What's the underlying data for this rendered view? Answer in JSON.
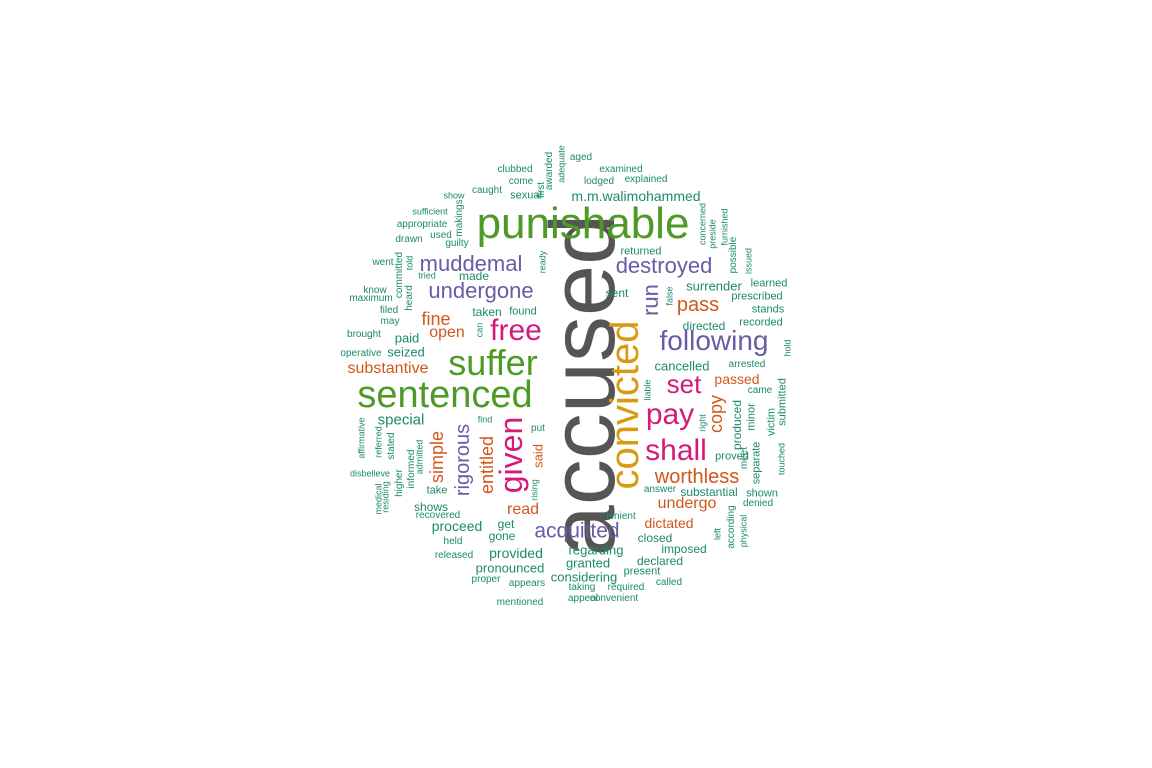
{
  "colors": {
    "gray": "#555555",
    "green": "#4e9a26",
    "orange": "#d89a10",
    "magenta": "#d6197a",
    "purple": "#6b5aa6",
    "rust": "#d2571a",
    "teal": "#1b8a6b"
  },
  "words": [
    {
      "text": "accused",
      "color": "gray"
    },
    {
      "text": "punishable",
      "color": "green"
    },
    {
      "text": "sentenced",
      "color": "green"
    },
    {
      "text": "suffer",
      "color": "green"
    },
    {
      "text": "convicted",
      "color": "orange"
    },
    {
      "text": "given",
      "color": "magenta"
    },
    {
      "text": "free",
      "color": "magenta"
    },
    {
      "text": "pay",
      "color": "magenta"
    },
    {
      "text": "shall",
      "color": "magenta"
    },
    {
      "text": "set",
      "color": "magenta"
    },
    {
      "text": "following",
      "color": "purple"
    },
    {
      "text": "destroyed",
      "color": "purple"
    },
    {
      "text": "undergone",
      "color": "purple"
    },
    {
      "text": "muddemal",
      "color": "purple"
    },
    {
      "text": "rigorous",
      "color": "purple"
    },
    {
      "text": "acquitted",
      "color": "purple"
    },
    {
      "text": "run",
      "color": "purple"
    },
    {
      "text": "entitled",
      "color": "rust"
    },
    {
      "text": "worthless",
      "color": "rust"
    },
    {
      "text": "fine",
      "color": "rust"
    },
    {
      "text": "pass",
      "color": "rust"
    },
    {
      "text": "simple",
      "color": "rust"
    },
    {
      "text": "open",
      "color": "rust"
    },
    {
      "text": "copy",
      "color": "rust"
    },
    {
      "text": "undergo",
      "color": "rust"
    },
    {
      "text": "substantive",
      "color": "rust"
    },
    {
      "text": "passed",
      "color": "rust"
    },
    {
      "text": "read",
      "color": "rust"
    },
    {
      "text": "dictated",
      "color": "rust"
    },
    {
      "text": "said",
      "color": "rust"
    },
    {
      "text": "m.m.walimohammed",
      "color": "teal"
    },
    {
      "text": "surrender",
      "color": "teal"
    },
    {
      "text": "cancelled",
      "color": "teal"
    },
    {
      "text": "special",
      "color": "teal"
    },
    {
      "text": "proceed",
      "color": "teal"
    },
    {
      "text": "provided",
      "color": "teal"
    },
    {
      "text": "pronounced",
      "color": "teal"
    },
    {
      "text": "regarding",
      "color": "teal"
    },
    {
      "text": "granted",
      "color": "teal"
    },
    {
      "text": "considering",
      "color": "teal"
    },
    {
      "text": "seized",
      "color": "teal"
    },
    {
      "text": "paid",
      "color": "teal"
    },
    {
      "text": "taken",
      "color": "teal"
    },
    {
      "text": "found",
      "color": "teal"
    },
    {
      "text": "directed",
      "color": "teal"
    },
    {
      "text": "recorded",
      "color": "teal"
    },
    {
      "text": "prescribed",
      "color": "teal"
    },
    {
      "text": "returned",
      "color": "teal"
    },
    {
      "text": "sent",
      "color": "teal"
    },
    {
      "text": "made",
      "color": "teal"
    },
    {
      "text": "produced",
      "color": "teal"
    },
    {
      "text": "imposed",
      "color": "teal"
    },
    {
      "text": "declared",
      "color": "teal"
    },
    {
      "text": "closed",
      "color": "teal"
    },
    {
      "text": "substantial",
      "color": "teal"
    },
    {
      "text": "shows",
      "color": "teal"
    },
    {
      "text": "get",
      "color": "teal"
    },
    {
      "text": "gone",
      "color": "teal"
    },
    {
      "text": "take",
      "color": "teal"
    },
    {
      "text": "proved",
      "color": "teal"
    },
    {
      "text": "arrested",
      "color": "teal"
    },
    {
      "text": "came",
      "color": "teal"
    },
    {
      "text": "stands",
      "color": "teal"
    },
    {
      "text": "learned",
      "color": "teal"
    },
    {
      "text": "minor",
      "color": "teal"
    },
    {
      "text": "victim",
      "color": "teal"
    },
    {
      "text": "separate",
      "color": "teal"
    },
    {
      "text": "submitted",
      "color": "teal"
    },
    {
      "text": "shown",
      "color": "teal"
    },
    {
      "text": "denied",
      "color": "teal"
    },
    {
      "text": "according",
      "color": "teal"
    },
    {
      "text": "physical",
      "color": "teal"
    },
    {
      "text": "left",
      "color": "teal"
    },
    {
      "text": "answer",
      "color": "teal"
    },
    {
      "text": "lenient",
      "color": "teal"
    },
    {
      "text": "present",
      "color": "teal"
    },
    {
      "text": "required",
      "color": "teal"
    },
    {
      "text": "called",
      "color": "teal"
    },
    {
      "text": "taking",
      "color": "teal"
    },
    {
      "text": "appeal",
      "color": "teal"
    },
    {
      "text": "convenient",
      "color": "teal"
    },
    {
      "text": "appears",
      "color": "teal"
    },
    {
      "text": "proper",
      "color": "teal"
    },
    {
      "text": "mentioned",
      "color": "teal"
    },
    {
      "text": "released",
      "color": "teal"
    },
    {
      "text": "held",
      "color": "teal"
    },
    {
      "text": "recovered",
      "color": "teal"
    },
    {
      "text": "informed",
      "color": "teal"
    },
    {
      "text": "stated",
      "color": "teal"
    },
    {
      "text": "admitted",
      "color": "teal"
    },
    {
      "text": "higher",
      "color": "teal"
    },
    {
      "text": "medical",
      "color": "teal"
    },
    {
      "text": "residing",
      "color": "teal"
    },
    {
      "text": "referred",
      "color": "teal"
    },
    {
      "text": "affirmative",
      "color": "teal"
    },
    {
      "text": "disbelieve",
      "color": "teal"
    },
    {
      "text": "operative",
      "color": "teal"
    },
    {
      "text": "brought",
      "color": "teal"
    },
    {
      "text": "may",
      "color": "teal"
    },
    {
      "text": "filed",
      "color": "teal"
    },
    {
      "text": "maximum",
      "color": "teal"
    },
    {
      "text": "know",
      "color": "teal"
    },
    {
      "text": "went",
      "color": "teal"
    },
    {
      "text": "drawn",
      "color": "teal"
    },
    {
      "text": "appropriate",
      "color": "teal"
    },
    {
      "text": "sufficient",
      "color": "teal"
    },
    {
      "text": "show",
      "color": "teal"
    },
    {
      "text": "used",
      "color": "teal"
    },
    {
      "text": "guilty",
      "color": "teal"
    },
    {
      "text": "makings",
      "color": "teal"
    },
    {
      "text": "caught",
      "color": "teal"
    },
    {
      "text": "clubbed",
      "color": "teal"
    },
    {
      "text": "come",
      "color": "teal"
    },
    {
      "text": "sexual",
      "color": "teal"
    },
    {
      "text": "first",
      "color": "teal"
    },
    {
      "text": "awarded",
      "color": "teal"
    },
    {
      "text": "adequate",
      "color": "teal"
    },
    {
      "text": "aged",
      "color": "teal"
    },
    {
      "text": "examined",
      "color": "teal"
    },
    {
      "text": "lodged",
      "color": "teal"
    },
    {
      "text": "explained",
      "color": "teal"
    },
    {
      "text": "concerned",
      "color": "teal"
    },
    {
      "text": "preside",
      "color": "teal"
    },
    {
      "text": "furnished",
      "color": "teal"
    },
    {
      "text": "possible",
      "color": "teal"
    },
    {
      "text": "issued",
      "color": "teal"
    },
    {
      "text": "false",
      "color": "teal"
    },
    {
      "text": "hold",
      "color": "teal"
    },
    {
      "text": "meet",
      "color": "teal"
    },
    {
      "text": "touched",
      "color": "teal"
    },
    {
      "text": "right",
      "color": "teal"
    },
    {
      "text": "liable",
      "color": "teal"
    },
    {
      "text": "find",
      "color": "teal"
    },
    {
      "text": "put",
      "color": "teal"
    },
    {
      "text": "rising",
      "color": "teal"
    },
    {
      "text": "can",
      "color": "teal"
    },
    {
      "text": "ready",
      "color": "teal"
    },
    {
      "text": "tried",
      "color": "teal"
    },
    {
      "text": "told",
      "color": "teal"
    },
    {
      "text": "committed",
      "color": "teal"
    },
    {
      "text": "heard",
      "color": "teal"
    }
  ]
}
